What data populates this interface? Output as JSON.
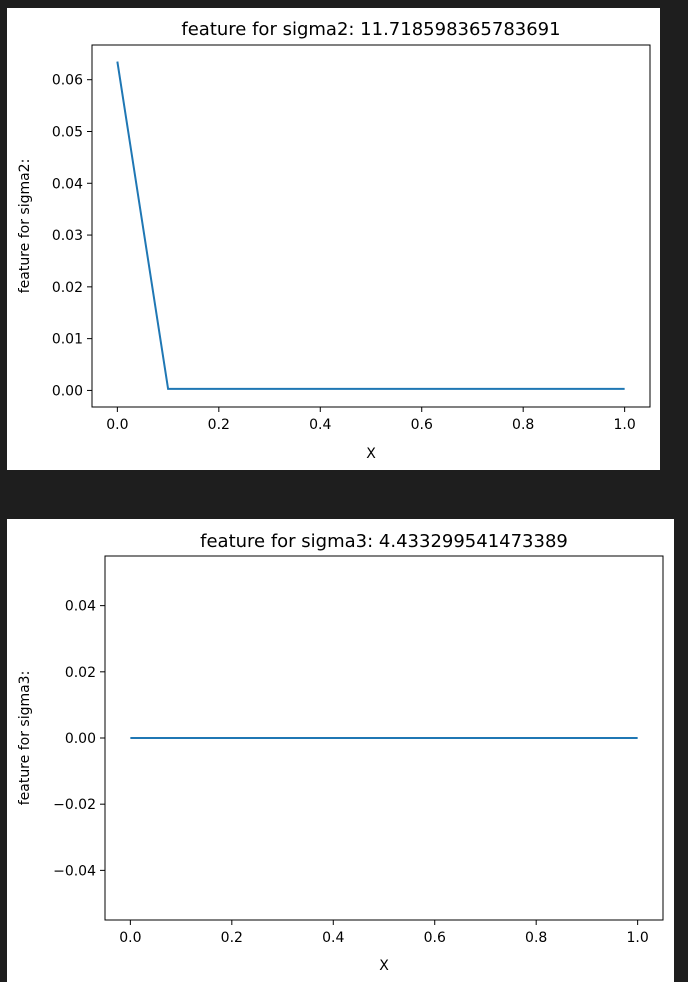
{
  "chart_data": [
    {
      "type": "line",
      "title": "feature for sigma2: 11.718598365783691",
      "xlabel": "X",
      "ylabel": "feature for sigma2:",
      "x": [
        0.0,
        0.1,
        0.2,
        0.3,
        0.4,
        0.5,
        0.6,
        0.7,
        0.8,
        0.9,
        1.0
      ],
      "y": [
        0.0635,
        0.0003,
        0.0003,
        0.0003,
        0.0003,
        0.0003,
        0.0003,
        0.0003,
        0.0003,
        0.0003,
        0.0003
      ],
      "xlim": [
        -0.05,
        1.05
      ],
      "ylim": [
        -0.0032,
        0.0667
      ],
      "xticks": [
        "0.0",
        "0.2",
        "0.4",
        "0.6",
        "0.8",
        "1.0"
      ],
      "yticks": [
        "0.00",
        "0.01",
        "0.02",
        "0.03",
        "0.04",
        "0.05",
        "0.06"
      ],
      "color": "#1f77b4",
      "grid": false
    },
    {
      "type": "line",
      "title": "feature for sigma3: 4.433299541473389",
      "xlabel": "X",
      "ylabel": "feature for sigma3:",
      "x": [
        0.0,
        0.1,
        0.2,
        0.3,
        0.4,
        0.5,
        0.6,
        0.7,
        0.8,
        0.9,
        1.0
      ],
      "y": [
        0.0,
        0.0,
        0.0,
        0.0,
        0.0,
        0.0,
        0.0,
        0.0,
        0.0,
        0.0,
        0.0
      ],
      "xlim": [
        -0.05,
        1.05
      ],
      "ylim": [
        -0.055,
        0.055
      ],
      "xticks": [
        "0.0",
        "0.2",
        "0.4",
        "0.6",
        "0.8",
        "1.0"
      ],
      "yticks": [
        "−0.04",
        "−0.02",
        "0.00",
        "0.02",
        "0.04"
      ],
      "color": "#1f77b4",
      "grid": false
    }
  ]
}
